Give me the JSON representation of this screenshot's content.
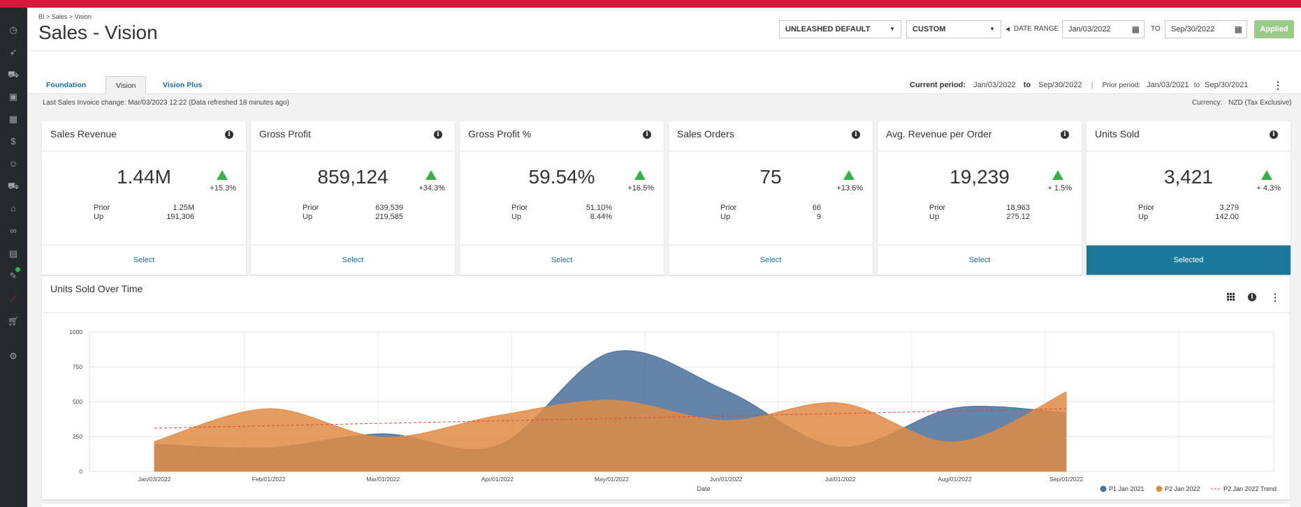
{
  "breadcrumb": "BI > Sales > Vision",
  "page_title": "Sales - Vision",
  "controls": {
    "template_select": "UNLEASHED DEFAULT",
    "range_type_select": "CUSTOM",
    "date_range_label": "DATE RANGE",
    "date_from": "Jan/03/2022",
    "to_label": "TO",
    "date_to": "Sep/30/2022",
    "applied_label": "Applied"
  },
  "tabs": [
    {
      "label": "Foundation",
      "active": false
    },
    {
      "label": "Vision",
      "active": true
    },
    {
      "label": "Vision Plus",
      "active": false
    }
  ],
  "period": {
    "current_label": "Current period:",
    "current_from": "Jan/03/2022",
    "to": "to",
    "current_to": "Sep/30/2022",
    "separator": "|",
    "prior_label": "Prior period:",
    "prior_from": "Jan/03/2021",
    "prior_to": "Sep/30/2021"
  },
  "last_change": "Last Sales Invoice change: Mar/03/2023 12:22 (Data refreshed 18 minutes ago)",
  "currency_label": "Currency:",
  "currency_value": "NZD (Tax Exclusive)",
  "cards": [
    {
      "title": "Sales Revenue",
      "value": "1.44M",
      "change": "+15.3%",
      "prior_label": "Prior",
      "prior": "1.25M",
      "up_label": "Up",
      "up": "191,306",
      "action": "Select",
      "selected": false
    },
    {
      "title": "Gross Profit",
      "value": "859,124",
      "change": "+34.3%",
      "prior_label": "Prior",
      "prior": "639,539",
      "up_label": "Up",
      "up": "219,585",
      "action": "Select",
      "selected": false
    },
    {
      "title": "Gross Profit %",
      "value": "59.54%",
      "change": "+16.5%",
      "prior_label": "Prior",
      "prior": "51.10%",
      "up_label": "Up",
      "up": "8.44%",
      "action": "Select",
      "selected": false
    },
    {
      "title": "Sales Orders",
      "value": "75",
      "change": "+13.6%",
      "prior_label": "Prior",
      "prior": "66",
      "up_label": "Up",
      "up": "9",
      "action": "Select",
      "selected": false
    },
    {
      "title": "Avg. Revenue per Order",
      "value": "19,239",
      "change": "+ 1.5%",
      "prior_label": "Prior",
      "prior": "18,963",
      "up_label": "Up",
      "up": "275.12",
      "action": "Select",
      "selected": false
    },
    {
      "title": "Units Sold",
      "value": "3,421",
      "change": "+ 4.3%",
      "prior_label": "Prior",
      "prior": "3,279",
      "up_label": "Up",
      "up": "142.00",
      "action": "Selected",
      "selected": true
    }
  ],
  "sidebar_icons": [
    "dashboard-icon",
    "rocket-icon",
    "sales-icon",
    "box-icon",
    "warehouse-icon",
    "dollar-icon",
    "customers-icon",
    "truck-icon",
    "store-icon",
    "link-icon",
    "table-icon",
    "integrations-icon",
    "bi-chart-icon",
    "cart-icon",
    "settings-icon"
  ],
  "colors": {
    "brand_red": "#d5193a",
    "p1": "#4a6f9a",
    "p2": "#e08b44",
    "trend": "#e8413a",
    "selected": "#1b7899",
    "up": "#35b24a"
  },
  "chart_data": {
    "type": "area",
    "title": "Units Sold Over Time",
    "xlabel": "Date",
    "ylabel": "",
    "ylim": [
      0,
      1000
    ],
    "yticks": [
      "0",
      "250",
      "500",
      "750",
      "1000"
    ],
    "x": [
      "Jan/03/2022",
      "Feb/01/2022",
      "Mar/01/2022",
      "Apr/01/2022",
      "May/01/2022",
      "Jun/01/2022",
      "Jul/01/2022",
      "Aug/01/2022",
      "Sep/01/2022"
    ],
    "series": [
      {
        "name": "P1 Jan 2021",
        "type": "area",
        "color": "#4a6f9a",
        "values": [
          195,
          170,
          270,
          185,
          855,
          580,
          175,
          455,
          420
        ]
      },
      {
        "name": "P2 Jan 2022",
        "type": "area",
        "color": "#e08b44",
        "values": [
          215,
          450,
          245,
          400,
          510,
          365,
          490,
          210,
          570
        ]
      },
      {
        "name": "P2 Jan 2022 Trend",
        "type": "line",
        "dashed": true,
        "color": "#e8413a",
        "values": [
          310,
          330,
          350,
          370,
          385,
          400,
          415,
          440,
          450
        ]
      }
    ],
    "legend_position": "bottom-right",
    "grid": true
  }
}
